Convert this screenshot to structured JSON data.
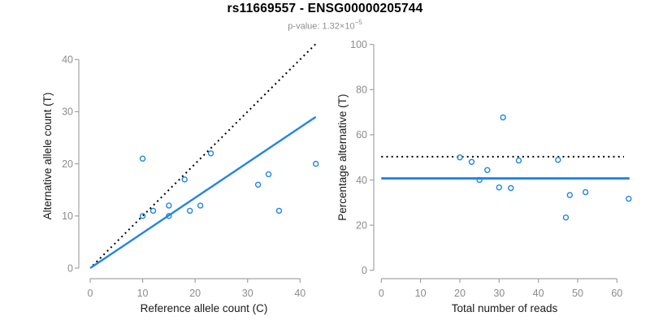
{
  "header": {
    "title": "rs11669557 - ENSG00000205744",
    "subtitle_text": "p-value: 1.32×10",
    "subtitle_exponent": "−5"
  },
  "colors": {
    "blue": "#2184E8",
    "black": "#000000",
    "axis_line": "#A3A3A3",
    "tick_label": "#8C8C8C",
    "axis_title": "#1A1A1A",
    "title": "#000000",
    "subtitle": "#8E8E8E",
    "background": "#FFFFFF"
  },
  "chart_data": [
    {
      "id": "allele-counts-scatter",
      "type": "scatter",
      "title": "",
      "xlabel": "Reference allele count (C)",
      "ylabel": "Alternative allele count (T)",
      "xlim": [
        0,
        43.5
      ],
      "ylim": [
        0,
        43
      ],
      "xticks": [
        0,
        10,
        20,
        30,
        40
      ],
      "yticks": [
        0,
        10,
        20,
        30,
        40
      ],
      "grid": false,
      "legend": false,
      "marker": "open-circle",
      "marker_color": "blue",
      "points": [
        [
          10,
          21
        ],
        [
          10,
          10
        ],
        [
          12,
          11
        ],
        [
          15,
          12
        ],
        [
          15,
          10
        ],
        [
          18,
          17
        ],
        [
          19,
          11
        ],
        [
          21,
          12
        ],
        [
          23,
          22
        ],
        [
          32,
          16
        ],
        [
          34,
          18
        ],
        [
          36,
          11
        ],
        [
          43,
          20
        ]
      ],
      "lines": [
        {
          "name": "identity-line",
          "style": "dotted",
          "color": "black",
          "width": 2,
          "from": [
            0.5,
            0.5
          ],
          "to": [
            43.2,
            43.2
          ]
        },
        {
          "name": "regression-line",
          "style": "solid",
          "color": "blue",
          "width": 2.4,
          "from": [
            0,
            0
          ],
          "to": [
            43,
            29
          ]
        }
      ]
    },
    {
      "id": "percentage-scatter",
      "type": "scatter",
      "title": "",
      "xlabel": "Total number of reads",
      "ylabel": "Percentage alternative (T)",
      "xlim": [
        0,
        63.5
      ],
      "ylim": [
        0,
        100
      ],
      "xticks": [
        0,
        10,
        20,
        30,
        40,
        50,
        60
      ],
      "yticks": [
        0,
        20,
        40,
        60,
        80,
        100
      ],
      "grid": false,
      "legend": false,
      "marker": "open-circle",
      "marker_color": "blue",
      "points": [
        [
          20,
          50
        ],
        [
          23,
          48
        ],
        [
          25,
          40
        ],
        [
          27,
          44.4
        ],
        [
          30,
          36.7
        ],
        [
          31,
          67.7
        ],
        [
          33,
          36.4
        ],
        [
          35,
          48.6
        ],
        [
          45,
          48.9
        ],
        [
          47,
          23.4
        ],
        [
          48,
          33.3
        ],
        [
          52,
          34.6
        ],
        [
          63,
          31.7
        ]
      ],
      "lines": [
        {
          "name": "fifty-percent-reference-line",
          "style": "dotted",
          "color": "black",
          "width": 2,
          "from": [
            0,
            50.3
          ],
          "to": [
            61.8,
            50.3
          ]
        },
        {
          "name": "mean-percentage-line",
          "style": "solid",
          "color": "blue",
          "width": 2.8,
          "from": [
            0,
            40.7
          ],
          "to": [
            63.2,
            40.7
          ]
        }
      ]
    }
  ]
}
